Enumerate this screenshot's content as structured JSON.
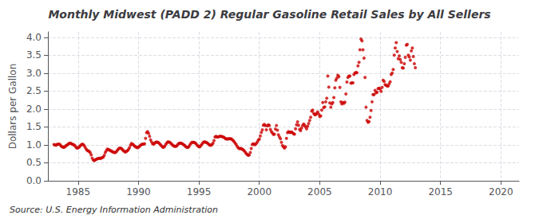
{
  "chart_data": {
    "type": "scatter",
    "title": "Monthly Midwest (PADD 2) Regular Gasoline Retail Sales by All Sellers",
    "ylabel": "Dollars per Gallon",
    "annotations": [
      "Source: U.S. Energy Information Administration"
    ],
    "color": "#CC0000",
    "grid": true,
    "xlim": [
      1982.5,
      2021.5
    ],
    "xticks": [
      1985,
      1990,
      1995,
      2000,
      2005,
      2010,
      2015,
      2020
    ],
    "ylim": [
      0.0,
      4.15
    ],
    "yticks": [
      {
        "value": 0.0,
        "label": "0.0"
      },
      0.5,
      {
        "value": 1.0,
        "label": "1.0"
      },
      1.5,
      {
        "value": 2.0,
        "label": "2.0"
      },
      2.5,
      {
        "value": 3.0,
        "label": "3.0"
      },
      3.5,
      {
        "value": 4.0,
        "label": "4.0"
      }
    ],
    "x": [
      1983.0,
      1983.083,
      1983.167,
      1983.25,
      1983.333,
      1983.417,
      1983.5,
      1983.583,
      1983.667,
      1983.75,
      1983.833,
      1983.917,
      1984.0,
      1984.083,
      1984.167,
      1984.25,
      1984.333,
      1984.417,
      1984.5,
      1984.583,
      1984.667,
      1984.75,
      1984.833,
      1984.917,
      1985.0,
      1985.083,
      1985.167,
      1985.25,
      1985.333,
      1985.417,
      1985.5,
      1985.583,
      1985.667,
      1985.75,
      1985.833,
      1985.917,
      1986.0,
      1986.083,
      1986.167,
      1986.25,
      1986.333,
      1986.417,
      1986.5,
      1986.583,
      1986.667,
      1986.75,
      1986.833,
      1986.917,
      1987.0,
      1987.083,
      1987.167,
      1987.25,
      1987.333,
      1987.417,
      1987.5,
      1987.583,
      1987.667,
      1987.75,
      1987.833,
      1987.917,
      1988.0,
      1988.083,
      1988.167,
      1988.25,
      1988.333,
      1988.417,
      1988.5,
      1988.583,
      1988.667,
      1988.75,
      1988.833,
      1988.917,
      1989.0,
      1989.083,
      1989.167,
      1989.25,
      1989.333,
      1989.417,
      1989.5,
      1989.583,
      1989.667,
      1989.75,
      1989.833,
      1989.917,
      1990.0,
      1990.083,
      1990.167,
      1990.25,
      1990.333,
      1990.417,
      1990.5,
      1990.583,
      1990.667,
      1990.75,
      1990.833,
      1990.917,
      1991.0,
      1991.083,
      1991.167,
      1991.25,
      1991.333,
      1991.417,
      1991.5,
      1991.583,
      1991.667,
      1991.75,
      1991.833,
      1991.917,
      1992.0,
      1992.083,
      1992.167,
      1992.25,
      1992.333,
      1992.417,
      1992.5,
      1992.583,
      1992.667,
      1992.75,
      1992.833,
      1992.917,
      1993.0,
      1993.083,
      1993.167,
      1993.25,
      1993.333,
      1993.417,
      1993.5,
      1993.583,
      1993.667,
      1993.75,
      1993.833,
      1993.917,
      1994.0,
      1994.083,
      1994.167,
      1994.25,
      1994.333,
      1994.417,
      1994.5,
      1994.583,
      1994.667,
      1994.75,
      1994.833,
      1994.917,
      1995.0,
      1995.083,
      1995.167,
      1995.25,
      1995.333,
      1995.417,
      1995.5,
      1995.583,
      1995.667,
      1995.75,
      1995.833,
      1995.917,
      1996.0,
      1996.083,
      1996.167,
      1996.25,
      1996.333,
      1996.417,
      1996.5,
      1996.583,
      1996.667,
      1996.75,
      1996.833,
      1996.917,
      1997.0,
      1997.083,
      1997.167,
      1997.25,
      1997.333,
      1997.417,
      1997.5,
      1997.583,
      1997.667,
      1997.75,
      1997.833,
      1997.917,
      1998.0,
      1998.083,
      1998.167,
      1998.25,
      1998.333,
      1998.417,
      1998.5,
      1998.583,
      1998.667,
      1998.75,
      1998.833,
      1998.917,
      1999.0,
      1999.083,
      1999.167,
      1999.25,
      1999.333,
      1999.417,
      1999.5,
      1999.583,
      1999.667,
      1999.75,
      1999.833,
      1999.917,
      2000.0,
      2000.083,
      2000.167,
      2000.25,
      2000.333,
      2000.417,
      2000.5,
      2000.583,
      2000.667,
      2000.75,
      2000.833,
      2000.917,
      2001.0,
      2001.083,
      2001.167,
      2001.25,
      2001.333,
      2001.417,
      2001.5,
      2001.583,
      2001.667,
      2001.75,
      2001.833,
      2001.917,
      2002.0,
      2002.083,
      2002.167,
      2002.25,
      2002.333,
      2002.417,
      2002.5,
      2002.583,
      2002.667,
      2002.75,
      2002.833,
      2002.917,
      2003.0,
      2003.083,
      2003.167,
      2003.25,
      2003.333,
      2003.417,
      2003.5,
      2003.583,
      2003.667,
      2003.75,
      2003.833,
      2003.917,
      2004.0,
      2004.083,
      2004.167,
      2004.25,
      2004.333,
      2004.417,
      2004.5,
      2004.583,
      2004.667,
      2004.75,
      2004.833,
      2004.917,
      2005.0,
      2005.083,
      2005.167,
      2005.25,
      2005.333,
      2005.417,
      2005.5,
      2005.583,
      2005.667,
      2005.75,
      2005.833,
      2005.917,
      2006.0,
      2006.083,
      2006.167,
      2006.25,
      2006.333,
      2006.417,
      2006.5,
      2006.583,
      2006.667,
      2006.75,
      2006.833,
      2006.917,
      2007.0,
      2007.083,
      2007.167,
      2007.25,
      2007.333,
      2007.417,
      2007.5,
      2007.583,
      2007.667,
      2007.75,
      2007.833,
      2007.917,
      2008.0,
      2008.083,
      2008.167,
      2008.25,
      2008.333,
      2008.417,
      2008.5,
      2008.583,
      2008.667,
      2008.75,
      2008.833,
      2008.917,
      2009.0,
      2009.083,
      2009.167,
      2009.25,
      2009.333,
      2009.417,
      2009.5,
      2009.583,
      2009.667,
      2009.75,
      2009.833,
      2009.917,
      2010.0,
      2010.083,
      2010.167,
      2010.25,
      2010.333,
      2010.417,
      2010.5,
      2010.583,
      2010.667,
      2010.75,
      2010.833,
      2010.917,
      2011.0,
      2011.083,
      2011.167,
      2011.25,
      2011.333,
      2011.417,
      2011.5,
      2011.583,
      2011.667,
      2011.75,
      2011.833,
      2011.917,
      2012.0,
      2012.083,
      2012.167,
      2012.25,
      2012.333,
      2012.417,
      2012.5,
      2012.583,
      2012.667,
      2012.75,
      2012.833,
      2012.917
    ],
    "values": [
      1.01,
      1.0,
      0.99,
      1.01,
      1.02,
      1.02,
      1.01,
      0.97,
      0.95,
      0.94,
      0.93,
      0.95,
      0.98,
      0.99,
      1.02,
      1.04,
      1.05,
      1.04,
      1.02,
      1.01,
      1.0,
      0.97,
      0.93,
      0.91,
      0.92,
      0.94,
      0.97,
      1.0,
      1.02,
      1.01,
      0.98,
      0.93,
      0.88,
      0.85,
      0.83,
      0.82,
      0.78,
      0.72,
      0.63,
      0.58,
      0.56,
      0.58,
      0.6,
      0.61,
      0.62,
      0.63,
      0.62,
      0.63,
      0.65,
      0.66,
      0.71,
      0.79,
      0.84,
      0.88,
      0.87,
      0.86,
      0.84,
      0.83,
      0.81,
      0.8,
      0.79,
      0.79,
      0.81,
      0.85,
      0.88,
      0.91,
      0.91,
      0.9,
      0.87,
      0.84,
      0.82,
      0.8,
      0.82,
      0.84,
      0.87,
      0.92,
      0.99,
      1.04,
      1.02,
      1.0,
      0.97,
      0.95,
      0.93,
      0.92,
      0.94,
      0.96,
      0.99,
      1.01,
      1.02,
      1.02,
      1.03,
      1.18,
      1.34,
      1.37,
      1.32,
      1.24,
      1.14,
      1.08,
      1.03,
      1.02,
      1.05,
      1.07,
      1.08,
      1.07,
      1.06,
      1.03,
      1.0,
      0.97,
      0.94,
      0.93,
      0.96,
      1.01,
      1.05,
      1.08,
      1.08,
      1.07,
      1.05,
      1.02,
      0.99,
      0.97,
      0.96,
      0.96,
      0.97,
      1.01,
      1.04,
      1.05,
      1.05,
      1.04,
      1.02,
      1.0,
      0.98,
      0.95,
      0.93,
      0.93,
      0.95,
      1.0,
      1.04,
      1.07,
      1.07,
      1.07,
      1.06,
      1.04,
      1.0,
      0.97,
      0.95,
      0.95,
      0.98,
      1.02,
      1.06,
      1.08,
      1.08,
      1.07,
      1.06,
      1.04,
      1.01,
      0.99,
      0.99,
      1.01,
      1.05,
      1.12,
      1.22,
      1.24,
      1.22,
      1.22,
      1.23,
      1.24,
      1.24,
      1.23,
      1.22,
      1.21,
      1.18,
      1.17,
      1.16,
      1.17,
      1.17,
      1.17,
      1.17,
      1.15,
      1.12,
      1.09,
      1.05,
      1.01,
      0.96,
      0.92,
      0.9,
      0.9,
      0.9,
      0.88,
      0.86,
      0.84,
      0.8,
      0.76,
      0.73,
      0.71,
      0.72,
      0.79,
      0.9,
      1.01,
      1.03,
      1.01,
      1.01,
      1.04,
      1.08,
      1.13,
      1.16,
      1.25,
      1.35,
      1.42,
      1.55,
      1.57,
      1.54,
      1.42,
      1.53,
      1.56,
      1.54,
      1.43,
      1.37,
      1.33,
      1.29,
      1.3,
      1.44,
      1.54,
      1.41,
      1.28,
      1.22,
      1.17,
      1.07,
      0.98,
      0.95,
      0.91,
      0.95,
      1.18,
      1.34,
      1.37,
      1.35,
      1.35,
      1.36,
      1.34,
      1.31,
      1.3,
      1.45,
      1.56,
      1.64,
      1.55,
      1.43,
      1.4,
      1.47,
      1.54,
      1.58,
      1.55,
      1.5,
      1.45,
      1.52,
      1.6,
      1.68,
      1.77,
      1.94,
      1.97,
      1.88,
      1.84,
      1.84,
      1.88,
      1.92,
      1.86,
      1.79,
      1.81,
      1.97,
      2.18,
      2.04,
      2.06,
      2.2,
      2.3,
      2.92,
      2.61,
      2.17,
      2.05,
      2.14,
      2.18,
      2.32,
      2.59,
      2.8,
      2.86,
      2.94,
      2.9,
      2.6,
      2.2,
      2.14,
      2.18,
      2.16,
      2.19,
      2.42,
      2.75,
      2.88,
      2.92,
      2.92,
      2.72,
      2.73,
      2.73,
      2.96,
      3.0,
      3.02,
      3.01,
      3.2,
      3.3,
      3.65,
      3.95,
      3.9,
      3.65,
      3.42,
      2.88,
      2.05,
      1.68,
      1.63,
      1.65,
      1.77,
      1.96,
      2.2,
      2.4,
      2.4,
      2.52,
      2.45,
      2.47,
      2.57,
      2.58,
      2.56,
      2.49,
      2.6,
      2.8,
      2.77,
      2.68,
      2.66,
      2.64,
      2.64,
      2.7,
      2.76,
      2.96,
      3.0,
      3.1,
      3.5,
      3.7,
      3.85,
      3.6,
      3.4,
      3.48,
      3.38,
      3.3,
      3.15,
      3.14,
      3.26,
      3.44,
      3.78,
      3.8,
      3.5,
      3.45,
      3.36,
      3.62,
      3.7,
      3.46,
      3.26,
      3.15
    ]
  }
}
